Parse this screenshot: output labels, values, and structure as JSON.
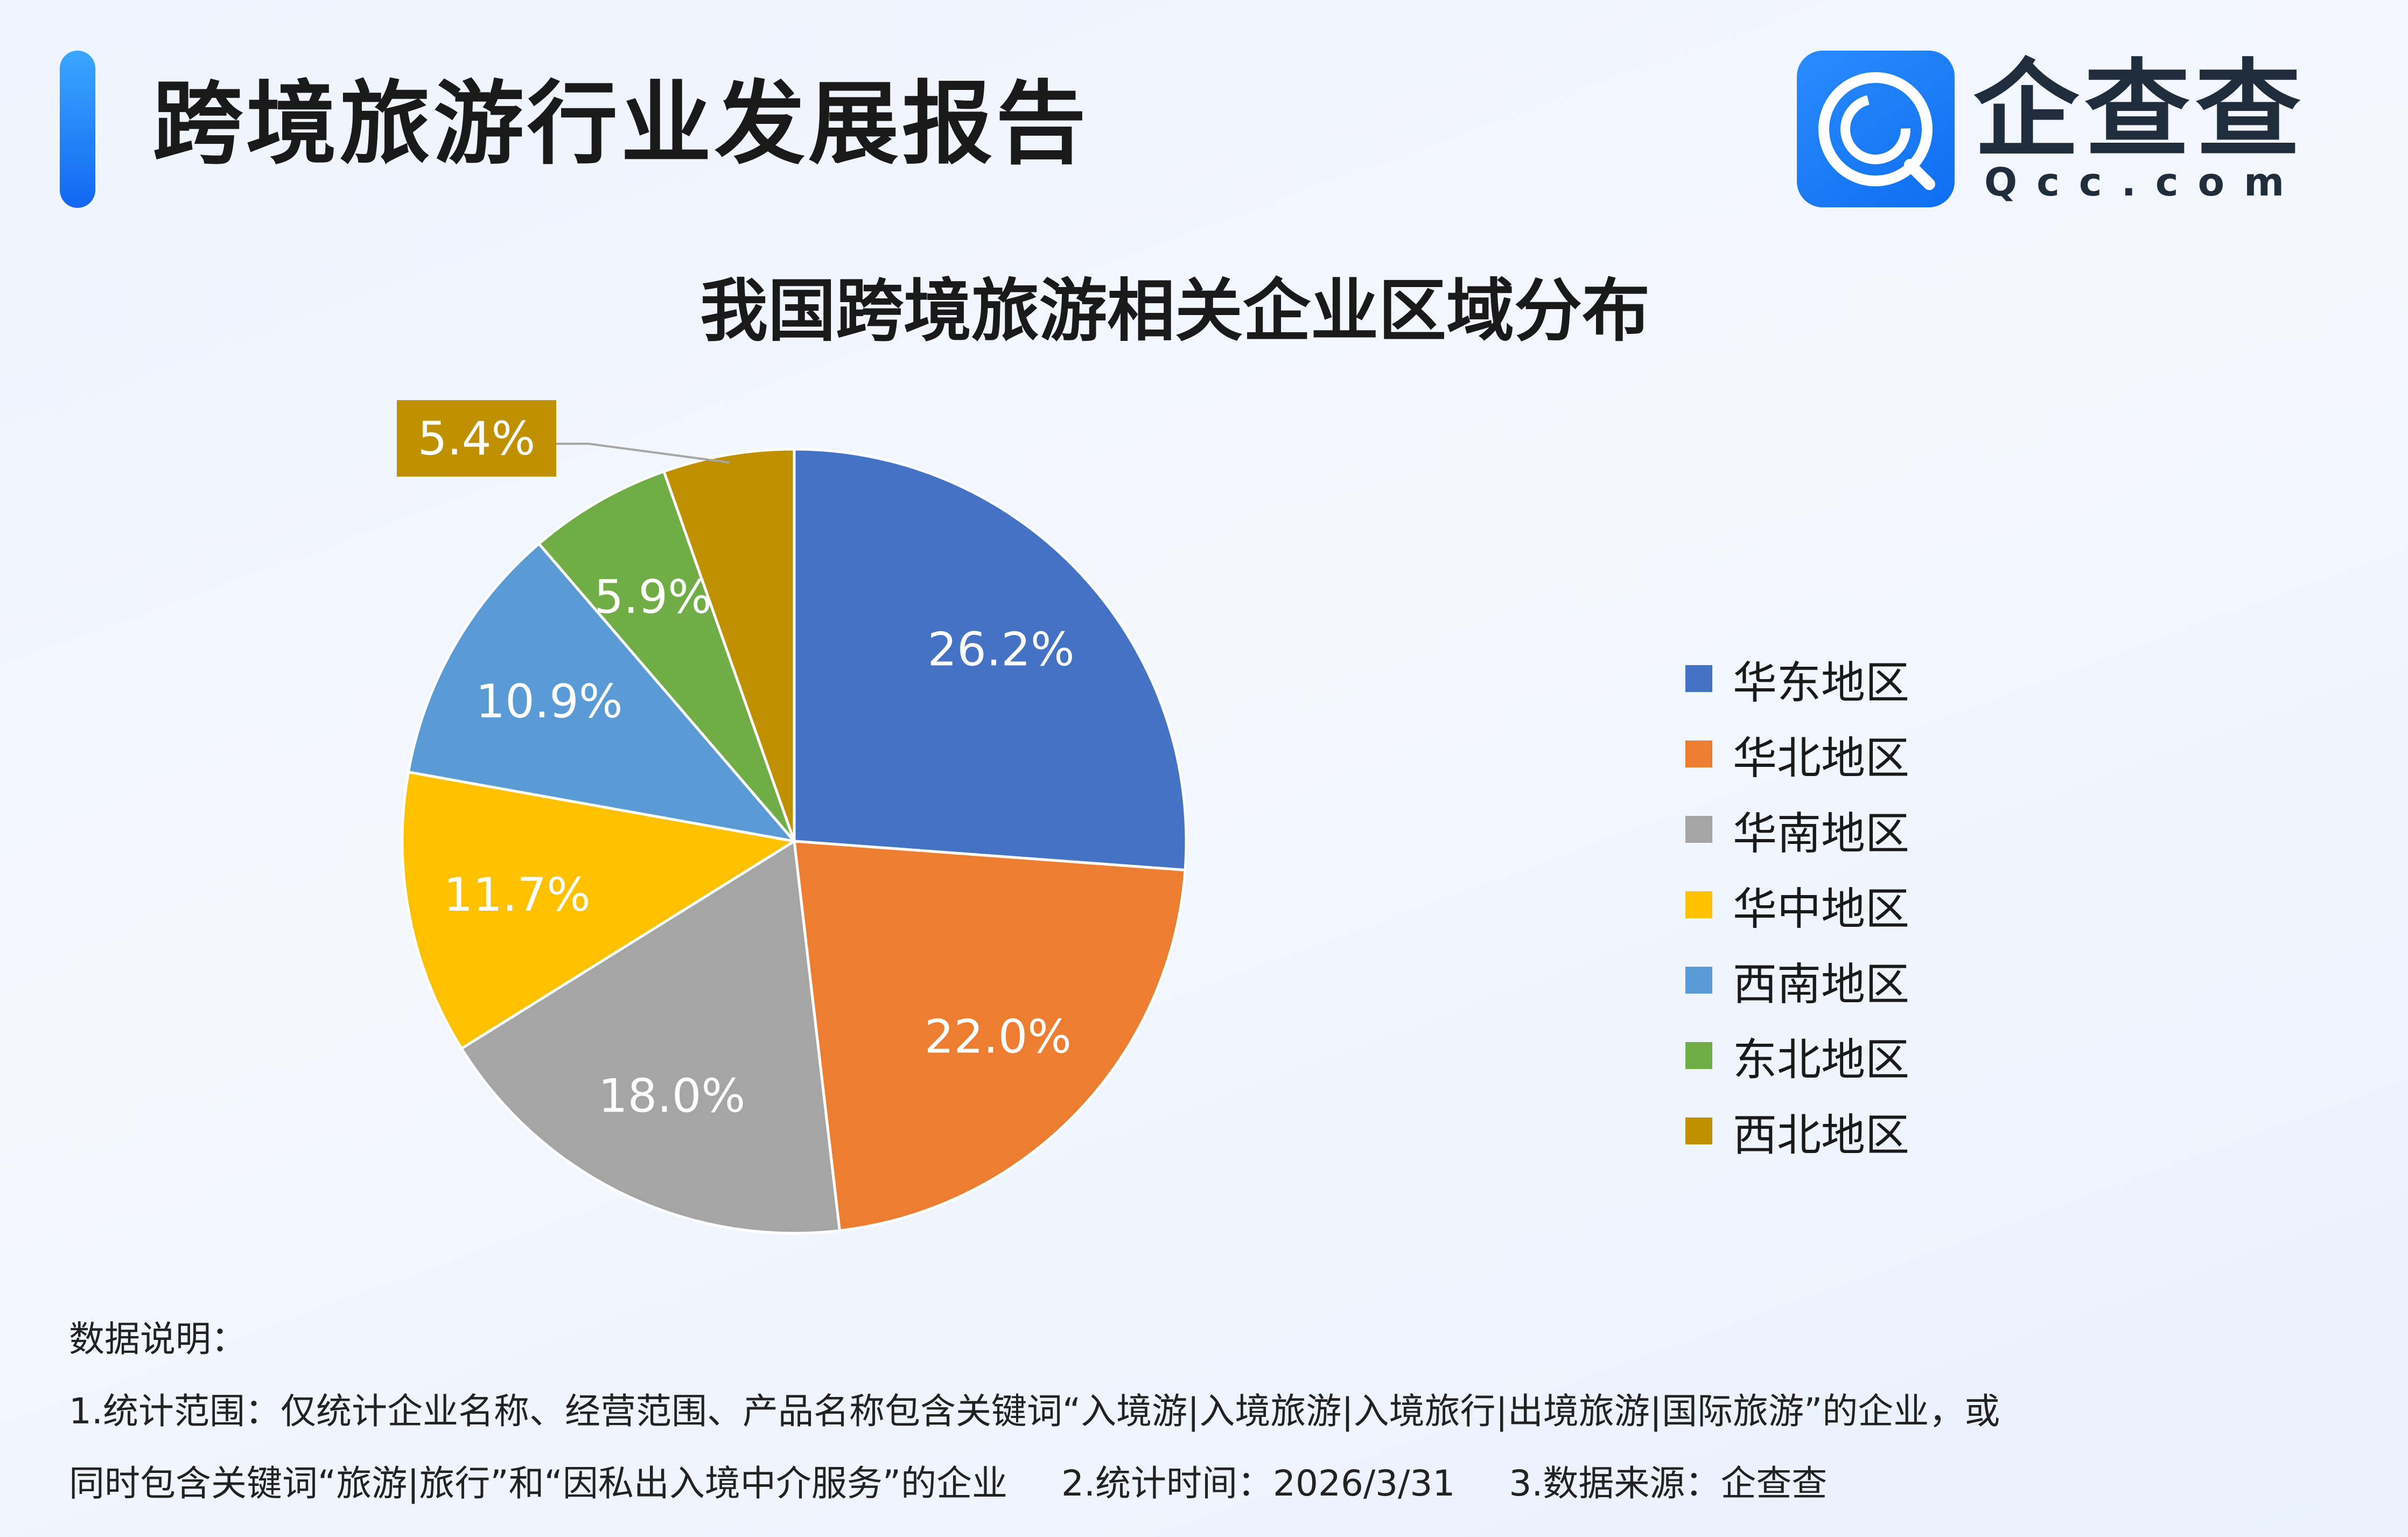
{
  "header": {
    "title": "跨境旅游行业发展报告",
    "logo_cn": "企查查",
    "logo_en": "Qcc.com"
  },
  "colors": {
    "accent": "#1c7cf7",
    "label_text": "#ffffff"
  },
  "chart_data": {
    "type": "pie",
    "title": "我国跨境旅游相关企业区域分布",
    "legend_position": "right",
    "slices": [
      {
        "name": "华东地区",
        "value": 26.2,
        "label": "26.2%",
        "color": "#4472c4"
      },
      {
        "name": "华北地区",
        "value": 22.0,
        "label": "22.0%",
        "color": "#ed7d31"
      },
      {
        "name": "华南地区",
        "value": 18.0,
        "label": "18.0%",
        "color": "#a5a5a5"
      },
      {
        "name": "华中地区",
        "value": 11.7,
        "label": "11.7%",
        "color": "#ffc000"
      },
      {
        "name": "西南地区",
        "value": 10.9,
        "label": "10.9%",
        "color": "#5b9bd5"
      },
      {
        "name": "东北地区",
        "value": 5.9,
        "label": "5.9%",
        "color": "#70ad47"
      },
      {
        "name": "西北地区",
        "value": 5.4,
        "label": "5.4%",
        "color": "#bf9000",
        "callout": true
      }
    ]
  },
  "notes": {
    "heading": "数据说明：",
    "line1": "1.统计范围：仅统计企业名称、经营范围、产品名称包含关键词“入境游|入境旅游|入境旅行|出境旅游|国际旅游”的企业，或",
    "line2": "同时包含关键词“旅游|旅行”和“因私出入境中介服务”的企业",
    "time": "2.统计时间：2026/3/31",
    "source": "3.数据来源：企查查"
  }
}
